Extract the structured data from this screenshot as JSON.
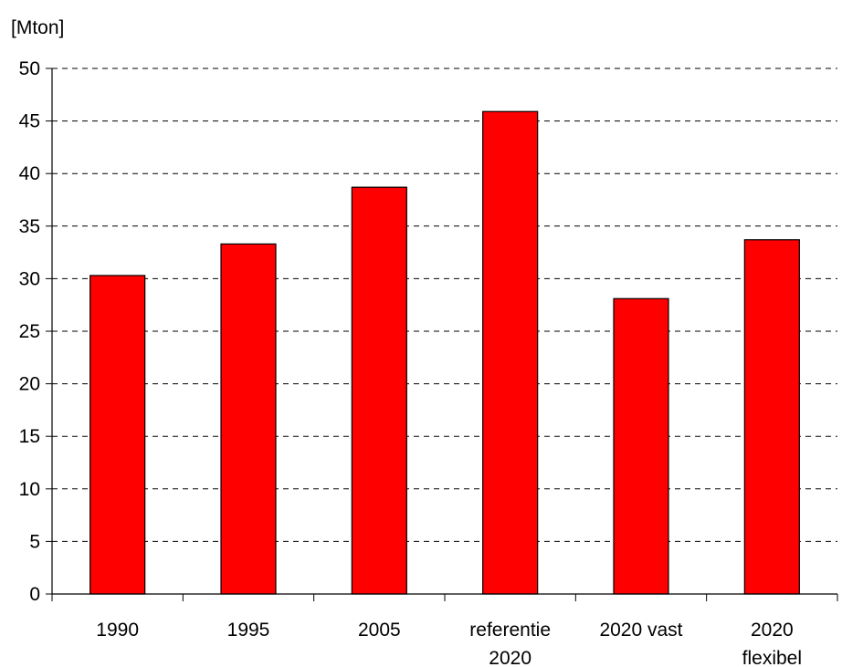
{
  "chart_data": {
    "type": "bar",
    "title": "",
    "xlabel": "",
    "ylabel": "[Mton]",
    "categories": [
      [
        "1990"
      ],
      [
        "1995"
      ],
      [
        "2005"
      ],
      [
        "referentie",
        "2020"
      ],
      [
        "2020 vast"
      ],
      [
        "2020",
        "flexibel"
      ]
    ],
    "values": [
      30.3,
      33.3,
      38.7,
      45.9,
      28.1,
      33.7
    ],
    "ylim": [
      0,
      50
    ],
    "yticks": [
      "0",
      "5",
      "10",
      "15",
      "20",
      "25",
      "30",
      "35",
      "40",
      "45",
      "50"
    ],
    "grid": true,
    "legend": "none",
    "bar_color": "#ff0000",
    "bar_edge_color": "#000000"
  }
}
